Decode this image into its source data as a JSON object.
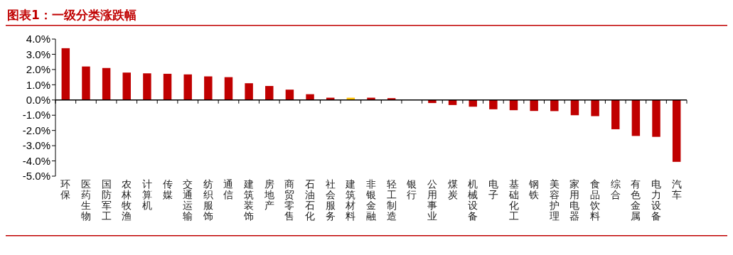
{
  "chart_data": {
    "type": "bar",
    "title": "图表1：一级分类涨跌幅",
    "categories": [
      "环保",
      "医药生物",
      "国防军工",
      "农林牧渔",
      "计算机",
      "传媒",
      "交通运输",
      "纺织服饰",
      "通信",
      "建筑装饰",
      "房地产",
      "商贸零售",
      "石油石化",
      "社会服务",
      "建筑材料",
      "非银金融",
      "轻工制造",
      "银行",
      "公用事业",
      "煤炭",
      "机械设备",
      "电子",
      "基础化工",
      "钢铁",
      "美容护理",
      "家用电器",
      "食品饮料",
      "综合",
      "有色金属",
      "电力设备",
      "汽车"
    ],
    "values": [
      3.4,
      2.2,
      2.1,
      1.8,
      1.75,
      1.72,
      1.68,
      1.55,
      1.5,
      1.1,
      0.92,
      0.68,
      0.38,
      0.15,
      0.15,
      0.15,
      0.12,
      0,
      -0.2,
      -0.33,
      -0.44,
      -0.61,
      -0.67,
      -0.72,
      -0.73,
      -1.0,
      -1.06,
      -1.92,
      -2.36,
      -2.42,
      -4.06
    ],
    "colors": [
      "#c00000",
      "#c00000",
      "#c00000",
      "#c00000",
      "#c00000",
      "#c00000",
      "#c00000",
      "#c00000",
      "#c00000",
      "#c00000",
      "#c00000",
      "#c00000",
      "#c00000",
      "#c00000",
      "#ffc000",
      "#c00000",
      "#c00000",
      "#c00000",
      "#c00000",
      "#c00000",
      "#c00000",
      "#c00000",
      "#c00000",
      "#c00000",
      "#c00000",
      "#c00000",
      "#c00000",
      "#c00000",
      "#c00000",
      "#c00000",
      "#c00000"
    ],
    "ylim": [
      -5,
      4
    ],
    "yticks": [
      {
        "value": 4,
        "label": "4.0%"
      },
      {
        "value": 3,
        "label": "3.0%"
      },
      {
        "value": 2,
        "label": "2.0%"
      },
      {
        "value": 1,
        "label": "1.0%"
      },
      {
        "value": 0,
        "label": "0.0%"
      },
      {
        "value": -1,
        "label": "-1.0%"
      },
      {
        "value": -2,
        "label": "-2.0%"
      },
      {
        "value": -3,
        "label": "-3.0%"
      },
      {
        "value": -4,
        "label": "-4.0%"
      },
      {
        "value": -5,
        "label": "-5.0%"
      }
    ]
  }
}
